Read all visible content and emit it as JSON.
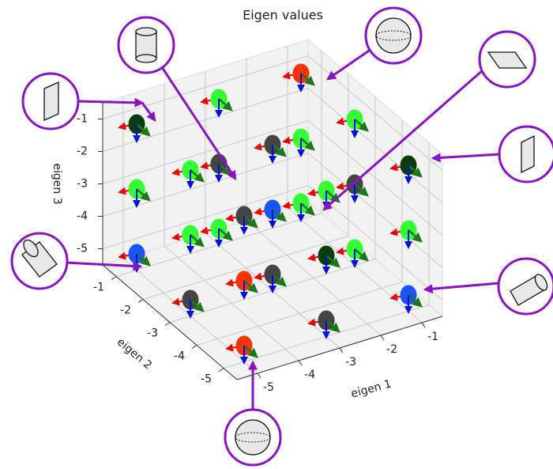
{
  "chart_data": {
    "type": "scatter3d",
    "title": "Eigen values",
    "xlabel": "eigen 1",
    "ylabel": "eigen 2",
    "zlabel": "eigen 3",
    "xlim": [
      -5.5,
      -0.5
    ],
    "ylim": [
      -5.5,
      -0.5
    ],
    "zlim": [
      -5.5,
      -0.5
    ],
    "xticks": [
      -5,
      -4,
      -3,
      -2,
      -1
    ],
    "yticks": [
      -5,
      -4,
      -3,
      -2,
      -1
    ],
    "zticks": [
      -5,
      -4,
      -3,
      -2,
      -1
    ],
    "grid": true,
    "points": [
      {
        "x": -1,
        "y": -1,
        "z": -1,
        "color": "#ff3300"
      },
      {
        "x": -3,
        "y": -1,
        "z": -1,
        "color": "#33ff33"
      },
      {
        "x": -5,
        "y": -1,
        "z": -1,
        "color": "#0a3d0a"
      },
      {
        "x": -1,
        "y": -3,
        "z": -1,
        "color": "#33ff33"
      },
      {
        "x": -3,
        "y": -3,
        "z": -1,
        "color": "#444444"
      },
      {
        "x": -5,
        "y": -3,
        "z": -1,
        "color": "#33ff33"
      },
      {
        "x": -1,
        "y": -5,
        "z": -1,
        "color": "#0a3d0a"
      },
      {
        "x": -3,
        "y": -5,
        "z": -1,
        "color": "#33ff33"
      },
      {
        "x": -5,
        "y": -5,
        "z": -1,
        "color": "#444444"
      },
      {
        "x": -1,
        "y": -1,
        "z": -3,
        "color": "#33ff33"
      },
      {
        "x": -3,
        "y": -1,
        "z": -3,
        "color": "#444444"
      },
      {
        "x": -5,
        "y": -1,
        "z": -3,
        "color": "#33ff33"
      },
      {
        "x": -1,
        "y": -3,
        "z": -3,
        "color": "#444444"
      },
      {
        "x": -3,
        "y": -3,
        "z": -3,
        "color": "#1a53ff"
      },
      {
        "x": -5,
        "y": -3,
        "z": -3,
        "color": "#33ff33"
      },
      {
        "x": -1,
        "y": -5,
        "z": -3,
        "color": "#33ff33"
      },
      {
        "x": -3,
        "y": -5,
        "z": -3,
        "color": "#0a3d0a"
      },
      {
        "x": -5,
        "y": -5,
        "z": -3,
        "color": "#ff3300"
      },
      {
        "x": -1,
        "y": -1,
        "z": -5,
        "color": "#33ff33"
      },
      {
        "x": -3,
        "y": -1,
        "z": -5,
        "color": "#33ff33"
      },
      {
        "x": -5,
        "y": -1,
        "z": -5,
        "color": "#1a53ff"
      },
      {
        "x": -1,
        "y": -3,
        "z": -5,
        "color": "#33ff33"
      },
      {
        "x": -3,
        "y": -3,
        "z": -5,
        "color": "#444444"
      },
      {
        "x": -5,
        "y": -3,
        "z": -5,
        "color": "#444444"
      },
      {
        "x": -1,
        "y": -5,
        "z": -5,
        "color": "#1a53ff"
      },
      {
        "x": -3,
        "y": -5,
        "z": -5,
        "color": "#444444"
      },
      {
        "x": -5,
        "y": -5,
        "z": -5,
        "color": "#ff3300"
      }
    ]
  }
}
